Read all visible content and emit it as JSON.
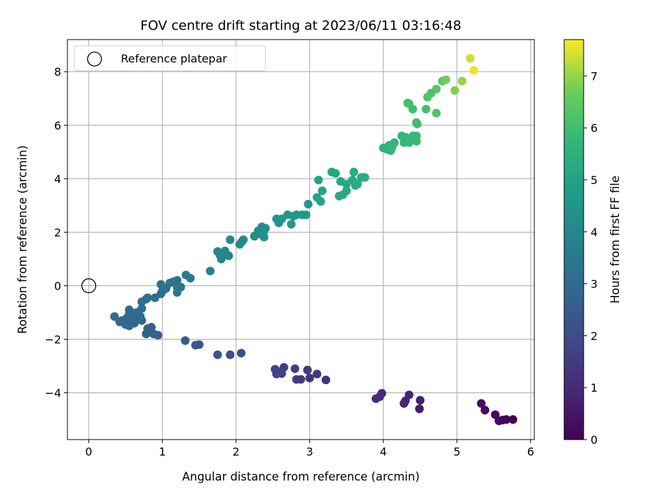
{
  "chart_data": {
    "type": "scatter",
    "title": "FOV centre drift starting at 2023/06/11 03:16:48",
    "xlabel": "Angular distance from reference (arcmin)",
    "ylabel": "Rotation from reference (arcmin)",
    "xlim": [
      -0.29,
      6.05
    ],
    "ylim": [
      -5.75,
      9.2
    ],
    "xticks": [
      0,
      1,
      2,
      3,
      4,
      5,
      6
    ],
    "yticks": [
      -4,
      -2,
      0,
      2,
      4,
      6,
      8
    ],
    "grid": true,
    "legend": {
      "placement": "top-left",
      "entries": [
        "Reference platepar"
      ]
    },
    "reference": {
      "x": 0,
      "y": 0
    },
    "colorbar": {
      "label": "Hours from first FF file",
      "colormap": "viridis",
      "range": [
        0,
        7.7
      ],
      "ticks": [
        0,
        1,
        2,
        3,
        4,
        5,
        6,
        7
      ]
    },
    "points": [
      [
        5.76,
        -5.0,
        0.0
      ],
      [
        5.67,
        -5.0,
        0.07
      ],
      [
        5.62,
        -5.02,
        0.12
      ],
      [
        5.57,
        -5.05,
        0.17
      ],
      [
        5.52,
        -4.82,
        0.22
      ],
      [
        5.38,
        -4.65,
        0.28
      ],
      [
        5.33,
        -4.4,
        0.33
      ],
      [
        4.49,
        -4.6,
        0.7
      ],
      [
        4.5,
        -4.28,
        0.75
      ],
      [
        4.35,
        -4.08,
        0.8
      ],
      [
        4.3,
        -4.3,
        0.85
      ],
      [
        4.28,
        -4.4,
        0.9
      ],
      [
        3.98,
        -4.02,
        0.95
      ],
      [
        3.95,
        -4.15,
        1.0
      ],
      [
        3.9,
        -4.22,
        1.05
      ],
      [
        3.22,
        -3.52,
        1.3
      ],
      [
        3.1,
        -3.3,
        1.35
      ],
      [
        3.0,
        -3.45,
        1.4
      ],
      [
        2.97,
        -3.15,
        1.45
      ],
      [
        2.88,
        -3.5,
        1.5
      ],
      [
        2.82,
        -3.5,
        1.55
      ],
      [
        2.8,
        -3.1,
        1.6
      ],
      [
        2.65,
        -3.05,
        1.65
      ],
      [
        2.62,
        -3.28,
        1.7
      ],
      [
        2.57,
        -3.22,
        1.75
      ],
      [
        2.55,
        -3.3,
        1.78
      ],
      [
        2.53,
        -3.12,
        1.82
      ],
      [
        2.07,
        -2.52,
        2.05
      ],
      [
        1.92,
        -2.58,
        2.12
      ],
      [
        1.75,
        -2.58,
        2.2
      ],
      [
        1.5,
        -2.2,
        2.3
      ],
      [
        1.45,
        -2.22,
        2.38
      ],
      [
        1.31,
        -2.05,
        2.45
      ],
      [
        0.94,
        -1.85,
        2.6
      ],
      [
        0.88,
        -1.8,
        2.65
      ],
      [
        0.85,
        -1.55,
        2.68
      ],
      [
        0.8,
        -1.6,
        2.7
      ],
      [
        0.78,
        -1.8,
        2.72
      ],
      [
        0.72,
        -1.3,
        2.78
      ],
      [
        0.68,
        -1.15,
        2.8
      ],
      [
        0.62,
        -1.4,
        2.82
      ],
      [
        0.58,
        -1.35,
        2.85
      ],
      [
        0.55,
        -1.5,
        2.87
      ],
      [
        0.52,
        -1.2,
        2.88
      ],
      [
        0.5,
        -1.45,
        2.9
      ],
      [
        0.45,
        -1.3,
        2.92
      ],
      [
        0.42,
        -1.35,
        2.94
      ],
      [
        0.35,
        -1.15,
        2.95
      ],
      [
        0.58,
        -1.25,
        2.97
      ],
      [
        0.55,
        -1.05,
        2.98
      ],
      [
        0.55,
        -0.9,
        3.0
      ],
      [
        0.65,
        -1.0,
        3.02
      ],
      [
        0.7,
        -1.15,
        3.05
      ],
      [
        0.72,
        -0.85,
        3.08
      ],
      [
        0.72,
        -0.6,
        3.1
      ],
      [
        0.78,
        -0.5,
        3.12
      ],
      [
        0.8,
        -0.45,
        3.14
      ],
      [
        0.9,
        -0.45,
        3.16
      ],
      [
        0.98,
        -0.3,
        3.2
      ],
      [
        1.0,
        -0.2,
        3.22
      ],
      [
        0.98,
        0.05,
        3.25
      ],
      [
        1.05,
        -0.1,
        3.27
      ],
      [
        1.1,
        0.1,
        3.3
      ],
      [
        1.15,
        0.15,
        3.32
      ],
      [
        1.2,
        0.2,
        3.35
      ],
      [
        1.2,
        -0.05,
        3.37
      ],
      [
        1.25,
        -0.05,
        3.38
      ],
      [
        1.2,
        -0.25,
        3.4
      ],
      [
        1.32,
        0.4,
        3.45
      ],
      [
        1.38,
        0.28,
        3.5
      ],
      [
        1.65,
        0.55,
        3.8
      ],
      [
        1.75,
        1.28,
        3.9
      ],
      [
        1.8,
        1.0,
        3.92
      ],
      [
        1.78,
        1.15,
        3.94
      ],
      [
        1.82,
        1.2,
        3.96
      ],
      [
        1.85,
        1.3,
        3.98
      ],
      [
        1.9,
        1.12,
        4.0
      ],
      [
        1.92,
        1.72,
        4.05
      ],
      [
        2.05,
        1.55,
        4.1
      ],
      [
        2.08,
        1.65,
        4.12
      ],
      [
        2.1,
        1.72,
        4.14
      ],
      [
        2.25,
        1.85,
        4.2
      ],
      [
        2.3,
        2.05,
        4.24
      ],
      [
        2.32,
        1.95,
        4.26
      ],
      [
        2.35,
        2.2,
        4.28
      ],
      [
        2.38,
        2.05,
        4.3
      ],
      [
        2.38,
        1.82,
        4.32
      ],
      [
        2.4,
        2.15,
        4.34
      ],
      [
        2.55,
        2.5,
        4.45
      ],
      [
        2.58,
        2.35,
        4.47
      ],
      [
        2.62,
        2.5,
        4.5
      ],
      [
        2.7,
        2.65,
        4.55
      ],
      [
        2.75,
        2.3,
        4.57
      ],
      [
        2.78,
        2.6,
        4.6
      ],
      [
        2.82,
        2.65,
        4.62
      ],
      [
        2.9,
        2.65,
        4.65
      ],
      [
        2.95,
        2.65,
        4.68
      ],
      [
        2.98,
        3.05,
        4.72
      ],
      [
        3.12,
        3.95,
        5.0
      ],
      [
        3.1,
        3.3,
        5.02
      ],
      [
        3.15,
        3.15,
        5.04
      ],
      [
        3.17,
        3.55,
        5.06
      ],
      [
        3.3,
        4.25,
        5.12
      ],
      [
        3.35,
        4.2,
        5.14
      ],
      [
        3.4,
        3.35,
        5.16
      ],
      [
        3.42,
        3.9,
        5.18
      ],
      [
        3.45,
        3.4,
        5.2
      ],
      [
        3.5,
        3.8,
        5.22
      ],
      [
        3.5,
        3.55,
        5.24
      ],
      [
        3.58,
        3.95,
        5.28
      ],
      [
        3.6,
        4.25,
        5.3
      ],
      [
        3.62,
        3.75,
        5.32
      ],
      [
        3.65,
        3.8,
        5.34
      ],
      [
        3.7,
        4.05,
        5.36
      ],
      [
        3.72,
        4.05,
        5.38
      ],
      [
        3.75,
        4.05,
        5.4
      ],
      [
        4.0,
        5.15,
        5.6
      ],
      [
        4.05,
        5.1,
        5.62
      ],
      [
        4.08,
        5.25,
        5.64
      ],
      [
        4.1,
        5.05,
        5.66
      ],
      [
        4.12,
        5.18,
        5.68
      ],
      [
        4.15,
        5.35,
        5.7
      ],
      [
        4.25,
        5.6,
        5.75
      ],
      [
        4.3,
        5.55,
        5.77
      ],
      [
        4.28,
        5.35,
        5.78
      ],
      [
        4.35,
        5.35,
        5.8
      ],
      [
        4.4,
        5.6,
        5.82
      ],
      [
        4.45,
        5.6,
        5.84
      ],
      [
        4.45,
        5.4,
        5.86
      ],
      [
        4.45,
        6.1,
        5.95
      ],
      [
        4.46,
        6.05,
        5.97
      ],
      [
        4.4,
        6.6,
        6.0
      ],
      [
        4.33,
        6.83,
        6.05
      ],
      [
        4.35,
        6.8,
        6.07
      ],
      [
        4.58,
        6.6,
        6.12
      ],
      [
        4.6,
        7.05,
        6.2
      ],
      [
        4.65,
        7.2,
        6.25
      ],
      [
        4.72,
        6.45,
        6.28
      ],
      [
        4.72,
        7.35,
        6.35
      ],
      [
        4.8,
        7.65,
        6.5
      ],
      [
        4.85,
        7.7,
        6.7
      ],
      [
        4.97,
        7.3,
        6.85
      ],
      [
        5.07,
        7.65,
        7.0
      ],
      [
        5.18,
        8.5,
        7.4
      ],
      [
        5.23,
        8.05,
        7.6
      ]
    ]
  }
}
